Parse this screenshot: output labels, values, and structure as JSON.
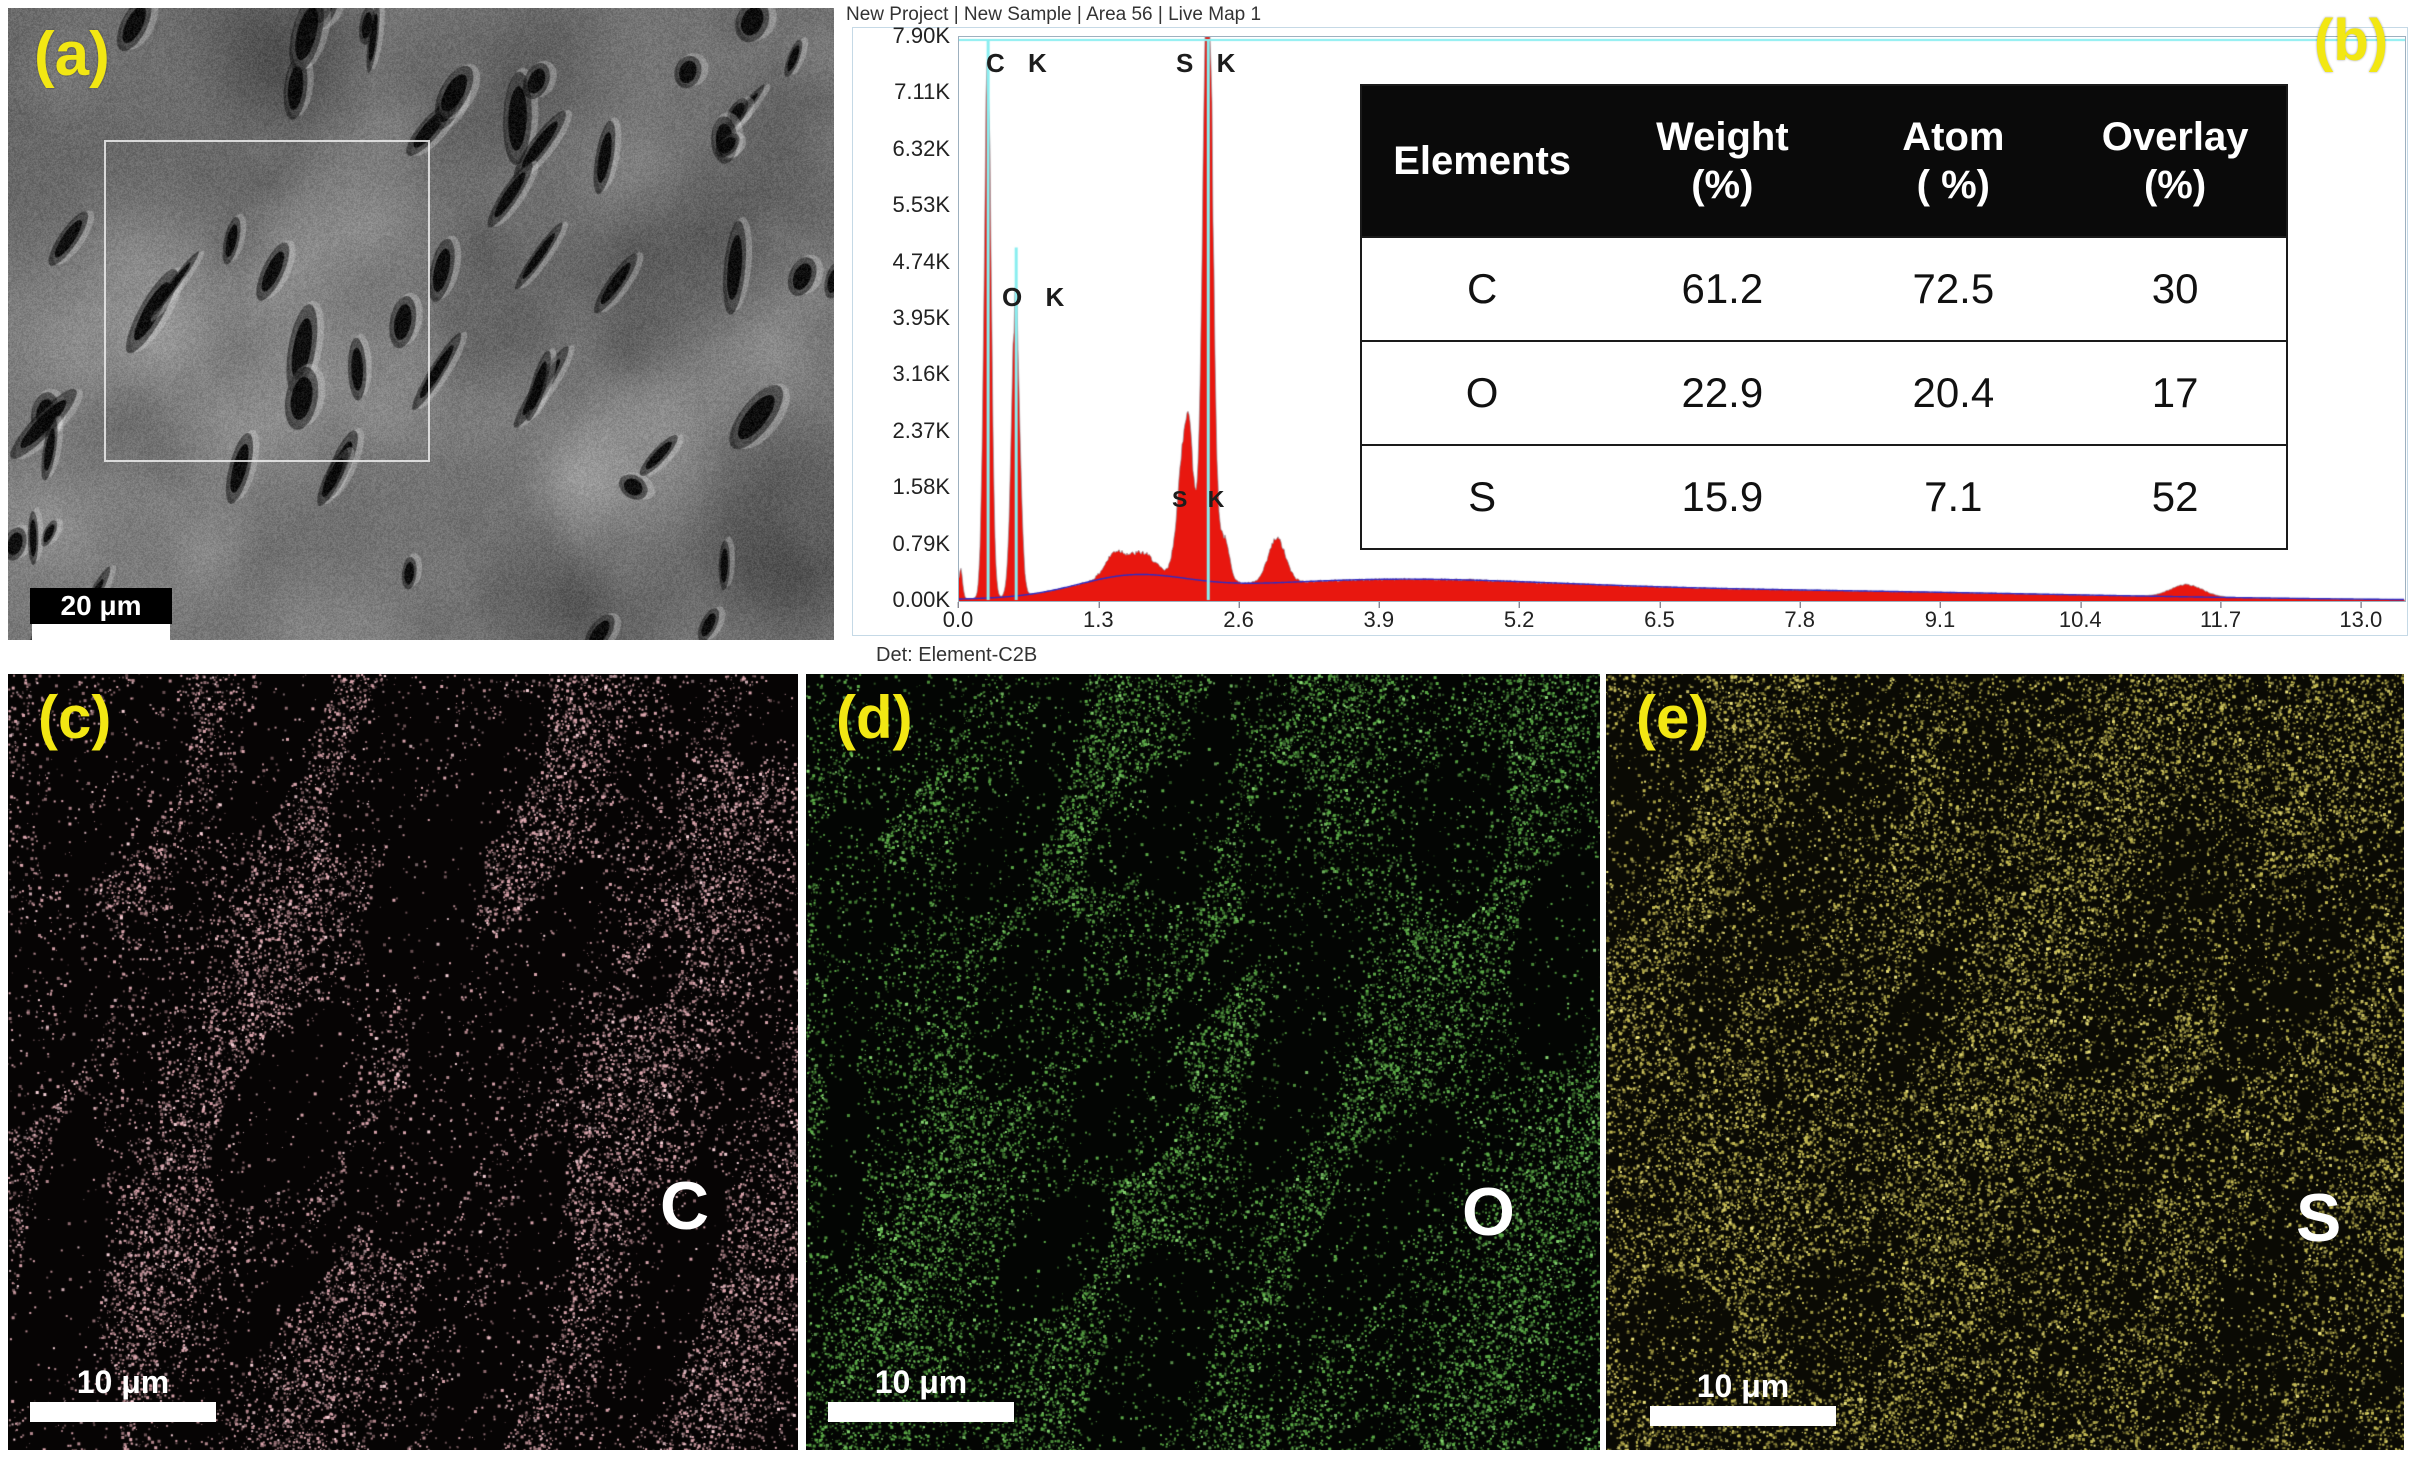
{
  "panels": {
    "a": {
      "label": "(a)",
      "scale_bar": "20 μm"
    },
    "b": {
      "label": "(b)"
    }
  },
  "eds": {
    "header": "New Project | New Sample | Area 56 | Live Map 1",
    "detector": "Det: Element-C2B",
    "table": {
      "headers": [
        {
          "line1": "Elements",
          "line2": ""
        },
        {
          "line1": "Weight",
          "line2": "(%)"
        },
        {
          "line1": "Atom",
          "line2": "( %)"
        },
        {
          "line1": "Overlay",
          "line2": "(%)"
        }
      ],
      "rows": [
        [
          "C",
          "61.2",
          "72.5",
          "30"
        ],
        [
          "O",
          "22.9",
          "20.4",
          "17"
        ],
        [
          "S",
          "15.9",
          "7.1",
          "52"
        ]
      ]
    }
  },
  "chart_data": {
    "type": "area",
    "title": "New Project | New Sample | Area 56 | Live Map 1",
    "xlabel": "",
    "ylabel": "",
    "xlim": [
      0,
      13.4
    ],
    "ylim": [
      0,
      7900
    ],
    "x_ticks": [
      0.0,
      1.3,
      2.6,
      3.9,
      5.2,
      6.5,
      7.8,
      9.1,
      10.4,
      11.7,
      13.0
    ],
    "y_tick_labels": [
      "0.00K",
      "0.79K",
      "1.58K",
      "2.37K",
      "3.16K",
      "3.95K",
      "4.74K",
      "5.53K",
      "6.32K",
      "7.11K",
      "7.90K"
    ],
    "grid": false,
    "legend": false,
    "peaks": [
      {
        "label": "C K",
        "energy": 0.27,
        "counts": 7600,
        "sigma": 0.033,
        "marker_to": 7900
      },
      {
        "label": "O K",
        "energy": 0.53,
        "counts": 4200,
        "sigma": 0.038,
        "marker_to": 4950
      },
      {
        "label": "S K",
        "energy": 2.31,
        "counts": 9300,
        "sigma": 0.045,
        "marker_to": 7900
      },
      {
        "label": "S K",
        "energy": 2.46,
        "counts": 620,
        "sigma": 0.05,
        "marker_to": 0
      }
    ],
    "background": [
      {
        "energy": 0.02,
        "counts": 420,
        "sigma": 0.018,
        "fit": false
      },
      {
        "energy": 1.45,
        "counts": 320,
        "sigma": 0.09,
        "fit": false
      },
      {
        "energy": 1.7,
        "counts": 300,
        "sigma": 0.12,
        "fit": false
      },
      {
        "energy": 2.05,
        "counts": 850,
        "sigma": 0.05,
        "fit": false
      },
      {
        "energy": 2.13,
        "counts": 2100,
        "sigma": 0.05,
        "fit": false
      },
      {
        "energy": 2.95,
        "counts": 620,
        "sigma": 0.08,
        "fit": false
      },
      {
        "energy": 1.6,
        "counts": 250,
        "sigma": 0.5,
        "fit": true
      },
      {
        "energy": 3.8,
        "counts": 210,
        "sigma": 1.6,
        "fit": true
      },
      {
        "energy": 7.0,
        "counts": 150,
        "sigma": 3.2,
        "fit": true
      },
      {
        "energy": 11.38,
        "counts": 170,
        "sigma": 0.15,
        "fit": false
      }
    ]
  },
  "maps": [
    {
      "panel_label": "(c)",
      "element": "C",
      "scale_bar": "10 μm",
      "dot_color": "#e0aab2"
    },
    {
      "panel_label": "(d)",
      "element": "O",
      "scale_bar": "10 μm",
      "dot_color": "#5fb04a"
    },
    {
      "panel_label": "(e)",
      "element": "S",
      "scale_bar": "10 μm",
      "dot_color": "#c9be55"
    }
  ],
  "colors": {
    "panel_label_yellow": "#f2e713",
    "spectrum_fill": "#e8170f",
    "peak_marker_cyan": "#8aeef0",
    "fit_line_blue": "#2c2cc8",
    "table_header_bg": "#0a0a0a"
  }
}
